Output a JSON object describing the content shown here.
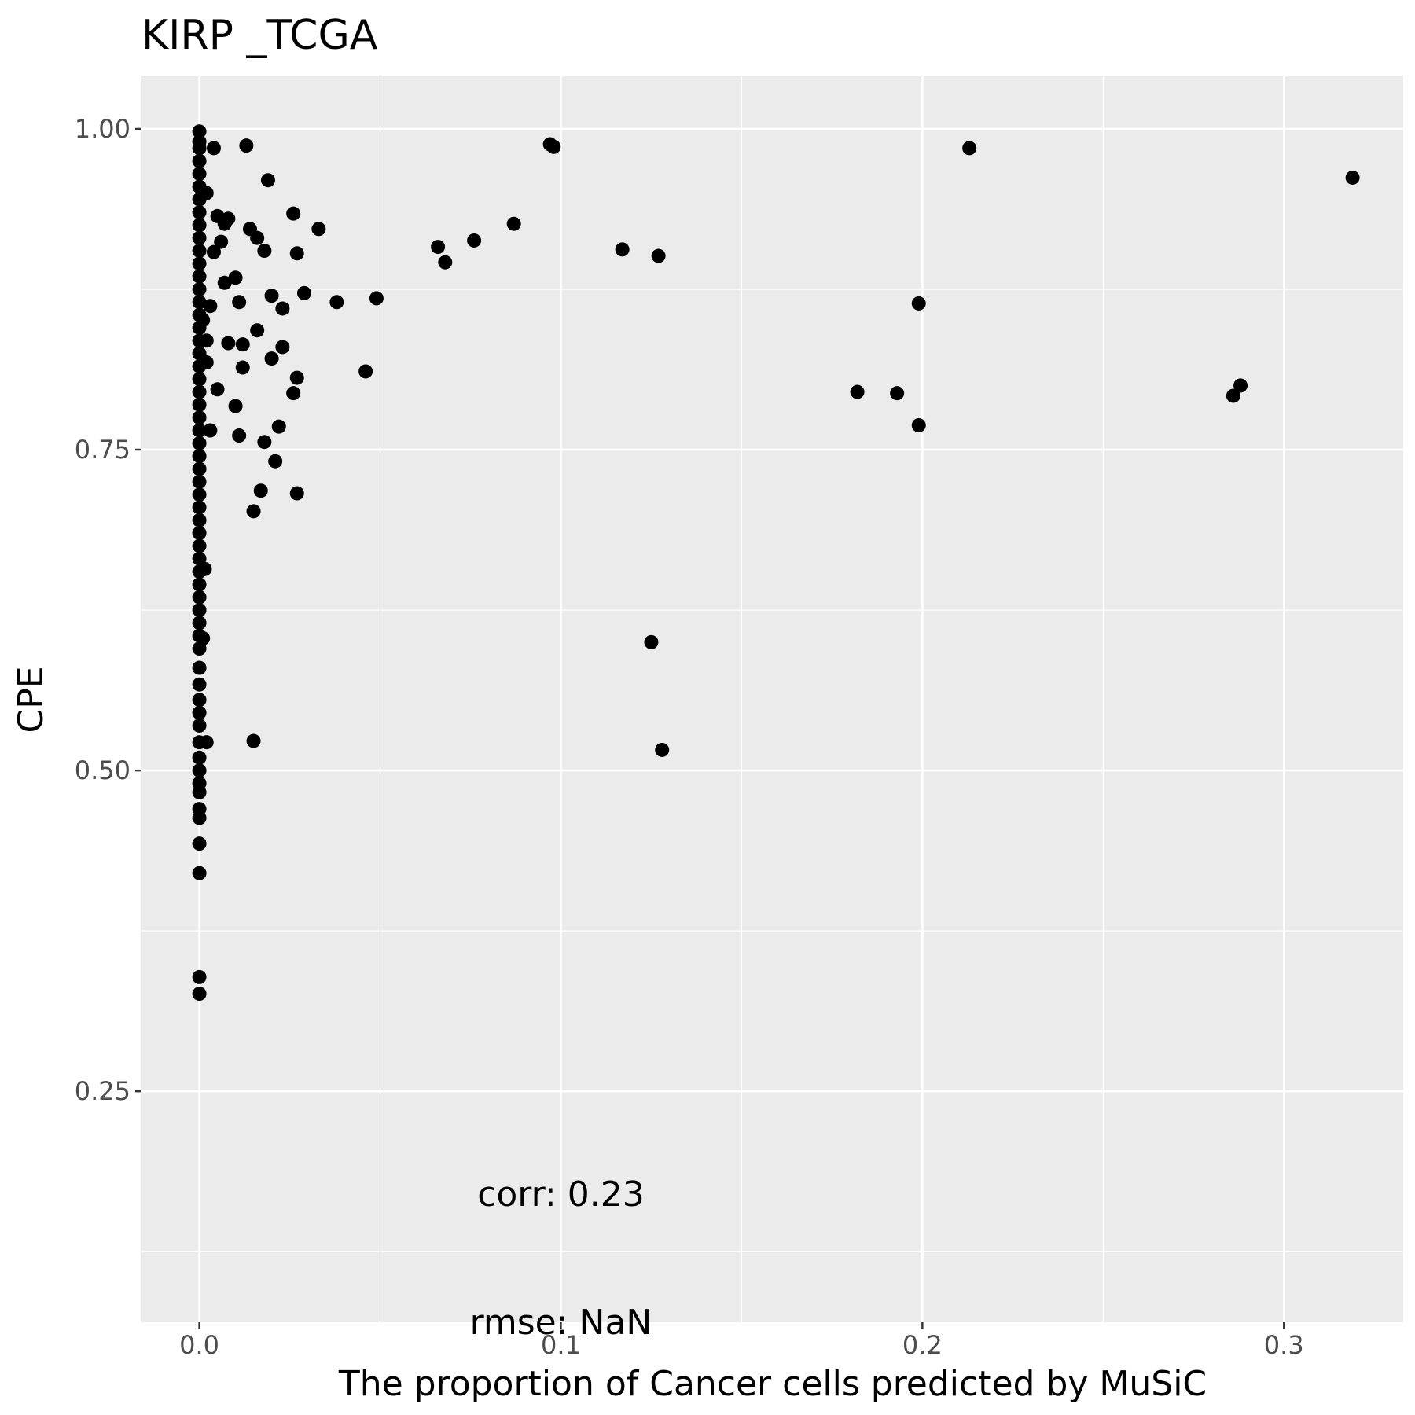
{
  "chart_data": {
    "type": "scatter",
    "title": "KIRP _TCGA",
    "xlabel": "The proportion of Cancer cells predicted by MuSiC",
    "ylabel": "CPE",
    "xlim": [
      -0.016,
      0.333
    ],
    "ylim": [
      0.07,
      1.041
    ],
    "x_ticks": [
      0.0,
      0.1,
      0.2,
      0.3
    ],
    "x_tick_labels": [
      "0.0",
      "0.1",
      "0.2",
      "0.3"
    ],
    "y_ticks": [
      0.25,
      0.5,
      0.75,
      1.0
    ],
    "y_tick_labels": [
      "0.25",
      "0.50",
      "0.75",
      "1.00"
    ],
    "grid": true,
    "background": "#ebebeb",
    "grid_color": "#ffffff",
    "point_color": "#000000",
    "annotations": [
      {
        "text": "corr: 0.23",
        "x": 0.1,
        "y": 0.17
      },
      {
        "text": "rmse: NaN",
        "x": 0.1,
        "y": 0.07
      }
    ],
    "points": [
      [
        0.0,
        0.998
      ],
      [
        0.0,
        0.99
      ],
      [
        0.0,
        0.985
      ],
      [
        0.0,
        0.975
      ],
      [
        0.0,
        0.965
      ],
      [
        0.0,
        0.955
      ],
      [
        0.0,
        0.945
      ],
      [
        0.0,
        0.935
      ],
      [
        0.0,
        0.925
      ],
      [
        0.0,
        0.915
      ],
      [
        0.0,
        0.905
      ],
      [
        0.0,
        0.895
      ],
      [
        0.0,
        0.885
      ],
      [
        0.0,
        0.875
      ],
      [
        0.0,
        0.865
      ],
      [
        0.0,
        0.855
      ],
      [
        0.0,
        0.845
      ],
      [
        0.0,
        0.835
      ],
      [
        0.0,
        0.825
      ],
      [
        0.0,
        0.815
      ],
      [
        0.0,
        0.805
      ],
      [
        0.0,
        0.795
      ],
      [
        0.0,
        0.785
      ],
      [
        0.0,
        0.775
      ],
      [
        0.0,
        0.765
      ],
      [
        0.0,
        0.755
      ],
      [
        0.0,
        0.745
      ],
      [
        0.0,
        0.735
      ],
      [
        0.0,
        0.725
      ],
      [
        0.0,
        0.715
      ],
      [
        0.0,
        0.705
      ],
      [
        0.0,
        0.695
      ],
      [
        0.0,
        0.685
      ],
      [
        0.0,
        0.675
      ],
      [
        0.0,
        0.665
      ],
      [
        0.0,
        0.655
      ],
      [
        0.0,
        0.645
      ],
      [
        0.0,
        0.635
      ],
      [
        0.0,
        0.625
      ],
      [
        0.0,
        0.615
      ],
      [
        0.0,
        0.605
      ],
      [
        0.0,
        0.595
      ],
      [
        0.0,
        0.58
      ],
      [
        0.0,
        0.567
      ],
      [
        0.0,
        0.555
      ],
      [
        0.0,
        0.545
      ],
      [
        0.0,
        0.535
      ],
      [
        0.0,
        0.522
      ],
      [
        0.0,
        0.51
      ],
      [
        0.0,
        0.5
      ],
      [
        0.0,
        0.49
      ],
      [
        0.0,
        0.483
      ],
      [
        0.0,
        0.47
      ],
      [
        0.0,
        0.463
      ],
      [
        0.0,
        0.443
      ],
      [
        0.0,
        0.42
      ],
      [
        0.0,
        0.339
      ],
      [
        0.0,
        0.326
      ],
      [
        0.002,
        0.95
      ],
      [
        0.003,
        0.862
      ],
      [
        0.002,
        0.835
      ],
      [
        0.002,
        0.818
      ],
      [
        0.003,
        0.765
      ],
      [
        0.0015,
        0.657
      ],
      [
        0.001,
        0.603
      ],
      [
        0.002,
        0.522
      ],
      [
        0.001,
        0.851
      ],
      [
        0.004,
        0.904
      ],
      [
        0.004,
        0.985
      ],
      [
        0.005,
        0.932
      ],
      [
        0.005,
        0.797
      ],
      [
        0.006,
        0.912
      ],
      [
        0.007,
        0.88
      ],
      [
        0.007,
        0.926
      ],
      [
        0.008,
        0.93
      ],
      [
        0.008,
        0.833
      ],
      [
        0.01,
        0.784
      ],
      [
        0.01,
        0.884
      ],
      [
        0.011,
        0.761
      ],
      [
        0.011,
        0.865
      ],
      [
        0.012,
        0.814
      ],
      [
        0.012,
        0.832
      ],
      [
        0.013,
        0.987
      ],
      [
        0.014,
        0.922
      ],
      [
        0.015,
        0.702
      ],
      [
        0.015,
        0.523
      ],
      [
        0.016,
        0.915
      ],
      [
        0.016,
        0.843
      ],
      [
        0.017,
        0.718
      ],
      [
        0.018,
        0.756
      ],
      [
        0.018,
        0.905
      ],
      [
        0.019,
        0.96
      ],
      [
        0.02,
        0.821
      ],
      [
        0.02,
        0.87
      ],
      [
        0.021,
        0.741
      ],
      [
        0.022,
        0.768
      ],
      [
        0.023,
        0.86
      ],
      [
        0.023,
        0.83
      ],
      [
        0.026,
        0.934
      ],
      [
        0.026,
        0.794
      ],
      [
        0.027,
        0.903
      ],
      [
        0.027,
        0.806
      ],
      [
        0.027,
        0.716
      ],
      [
        0.029,
        0.872
      ],
      [
        0.033,
        0.922
      ],
      [
        0.038,
        0.865
      ],
      [
        0.046,
        0.811
      ],
      [
        0.049,
        0.868
      ],
      [
        0.066,
        0.908
      ],
      [
        0.068,
        0.896
      ],
      [
        0.076,
        0.913
      ],
      [
        0.087,
        0.926
      ],
      [
        0.097,
        0.988
      ],
      [
        0.098,
        0.986
      ],
      [
        0.117,
        0.906
      ],
      [
        0.125,
        0.6
      ],
      [
        0.127,
        0.901
      ],
      [
        0.128,
        0.516
      ],
      [
        0.182,
        0.795
      ],
      [
        0.193,
        0.794
      ],
      [
        0.199,
        0.864
      ],
      [
        0.199,
        0.769
      ],
      [
        0.213,
        0.985
      ],
      [
        0.286,
        0.792
      ],
      [
        0.288,
        0.8
      ],
      [
        0.319,
        0.962
      ]
    ]
  }
}
